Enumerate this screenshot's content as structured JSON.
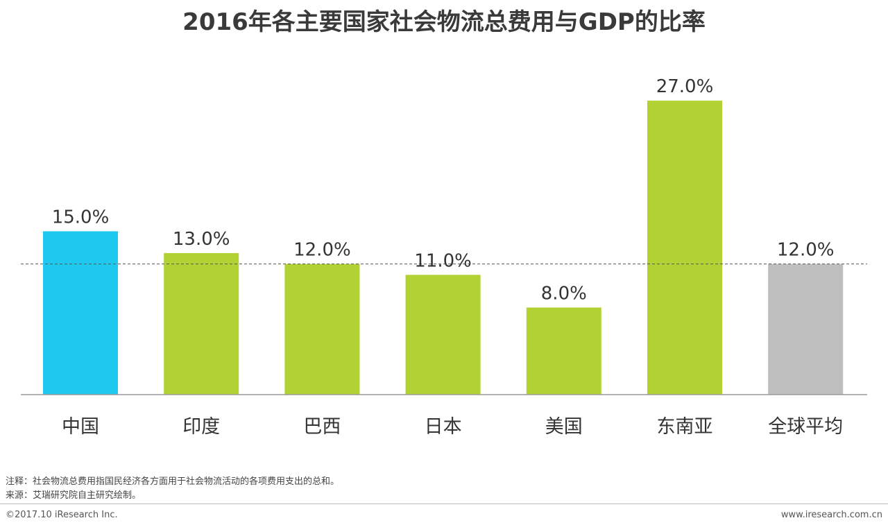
{
  "chart_data": {
    "type": "bar",
    "title": "2016年各主要国家社会物流总费用与GDP的比率",
    "categories": [
      "中国",
      "印度",
      "巴西",
      "日本",
      "美国",
      "东南亚",
      "全球平均"
    ],
    "values": [
      15.0,
      13.0,
      12.0,
      11.0,
      8.0,
      27.0,
      12.0
    ],
    "value_labels": [
      "15.0%",
      "13.0%",
      "12.0%",
      "11.0%",
      "8.0%",
      "27.0%",
      "12.0%"
    ],
    "bar_colors": [
      "#1ec8ef",
      "#b2d234",
      "#b2d234",
      "#b2d234",
      "#b2d234",
      "#b2d234",
      "#bfbfbf"
    ],
    "reference_line": {
      "value": 12.0,
      "style": "dashed"
    },
    "ylim": [
      0,
      28
    ],
    "xlabel": "",
    "ylabel": "",
    "grid": false,
    "legend": "none"
  },
  "footer": {
    "note": "注释：社会物流总费用指国民经济各方面用于社会物流活动的各项费用支出的总和。",
    "source": "来源：艾瑞研究院自主研究绘制。",
    "copyright": "©2017.10 iResearch Inc.",
    "website": "www.iresearch.com.cn"
  }
}
